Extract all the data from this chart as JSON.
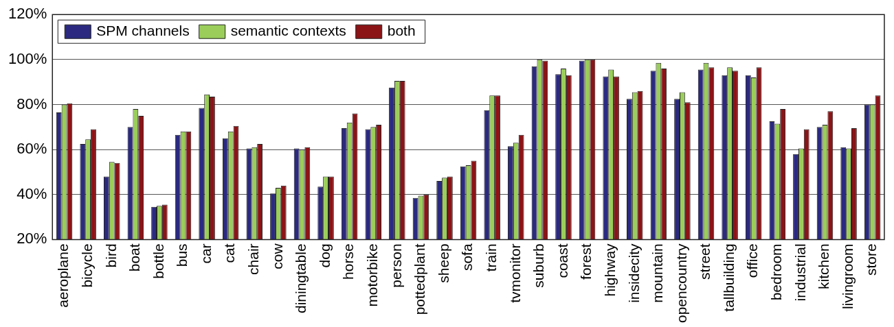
{
  "chart_data": {
    "type": "bar",
    "categories": [
      "aeroplane",
      "bicycle",
      "bird",
      "boat",
      "bottle",
      "bus",
      "car",
      "cat",
      "chair",
      "cow",
      "diningtable",
      "dog",
      "horse",
      "motorbike",
      "person",
      "pottedplant",
      "sheep",
      "sofa",
      "train",
      "tvmonitor",
      "suburb",
      "coast",
      "forest",
      "highway",
      "insidecity",
      "mountain",
      "opencountry",
      "street",
      "tallbuilding",
      "office",
      "bedroom",
      "industrial",
      "kitchen",
      "livingroom",
      "store"
    ],
    "series": [
      {
        "name": "SPM channels",
        "color": "#2b2a80",
        "values": [
          76.5,
          62.5,
          48,
          70,
          34.5,
          66.5,
          78.5,
          65,
          60.5,
          40.5,
          60.5,
          43.5,
          69.5,
          69,
          87.5,
          38.5,
          46,
          52.5,
          77.5,
          61.5,
          97,
          93.5,
          99.5,
          92.5,
          82.5,
          95,
          82.5,
          95.5,
          93,
          93,
          72.5,
          58,
          70,
          61,
          80
        ]
      },
      {
        "name": "semantic contexts",
        "color": "#9acd5a",
        "values": [
          80,
          64.5,
          54.5,
          78,
          35,
          68,
          84.5,
          68,
          61,
          43,
          60,
          48,
          72,
          70,
          90.5,
          39.5,
          47.5,
          53,
          84,
          63,
          100,
          96,
          100,
          95.5,
          85.5,
          98.5,
          85.5,
          98.5,
          96.5,
          92,
          71.5,
          60.5,
          71,
          60.5,
          80
        ]
      },
      {
        "name": "both",
        "color": "#8b1417",
        "values": [
          80.5,
          69,
          54,
          75,
          35.5,
          68,
          83.5,
          70.5,
          62.5,
          44,
          61,
          48,
          76,
          71,
          90.5,
          40,
          48,
          55,
          84,
          66.5,
          99.5,
          93,
          100,
          92.5,
          86,
          96,
          81,
          96.5,
          95,
          96.5,
          78,
          69,
          77,
          69.5,
          84
        ]
      }
    ],
    "ylim": [
      20,
      120
    ],
    "yticks": [
      {
        "value": 20,
        "label": "20%"
      },
      {
        "value": 40,
        "label": "40%"
      },
      {
        "value": 60,
        "label": "60%"
      },
      {
        "value": 80,
        "label": "80%"
      },
      {
        "value": 100,
        "label": "100%"
      },
      {
        "value": 120,
        "label": "120%"
      }
    ],
    "grid": "y",
    "legend": "top left"
  }
}
